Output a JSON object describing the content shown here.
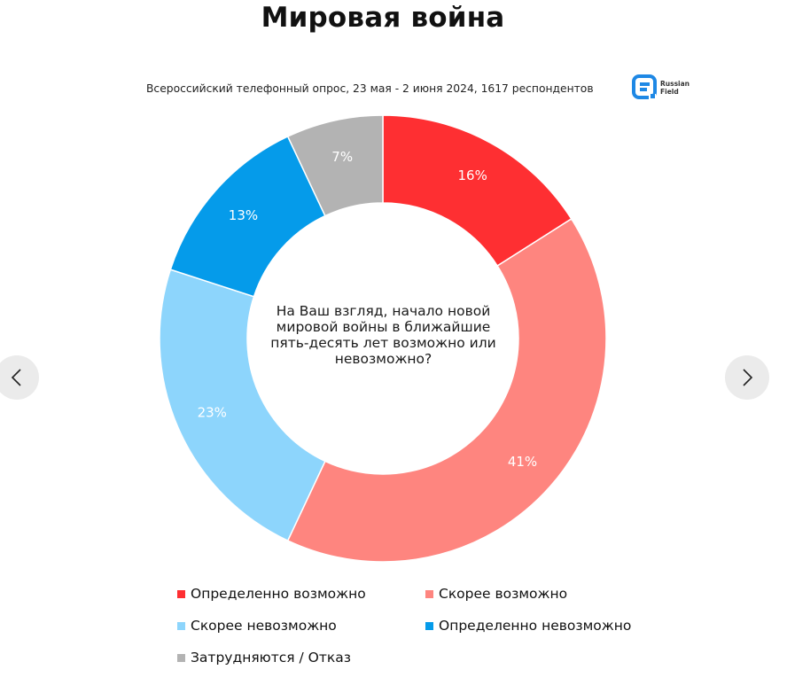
{
  "title": "Мировая война",
  "subtitle": "Всероссийский телефонный опрос, 23 мая - 2 июня 2024, 1617 респондентов",
  "logo": {
    "line1": "Russian",
    "line2": "Field",
    "color": "#1e88e5"
  },
  "question": "На Ваш взгляд, начало новой мировой войны в ближайшие пять-десять лет возможно или невозможно?",
  "nav": {
    "prev_icon": "chevron-left-icon",
    "next_icon": "chevron-right-icon"
  },
  "chart_data": {
    "type": "pie",
    "donut": true,
    "title": "Мировая война",
    "subtitle": "Всероссийский телефонный опрос, 23 мая - 2 июня 2024, 1617 респондентов",
    "center_text": "На Ваш взгляд, начало новой мировой войны в ближайшие пять-десять лет возможно или невозможно?",
    "legend_position": "bottom",
    "slices": [
      {
        "name": "Определенно возможно",
        "value": 16,
        "label": "16%",
        "color": "#fe2f32"
      },
      {
        "name": "Скорее возможно",
        "value": 41,
        "label": "41%",
        "color": "#fe857f"
      },
      {
        "name": "Скорее невозможно",
        "value": 23,
        "label": "23%",
        "color": "#8dd5fc"
      },
      {
        "name": "Определенно невозможно",
        "value": 13,
        "label": "13%",
        "color": "#059bea"
      },
      {
        "name": "Затрудняются / Отказ",
        "value": 7,
        "label": "7%",
        "color": "#b3b3b3"
      }
    ]
  }
}
